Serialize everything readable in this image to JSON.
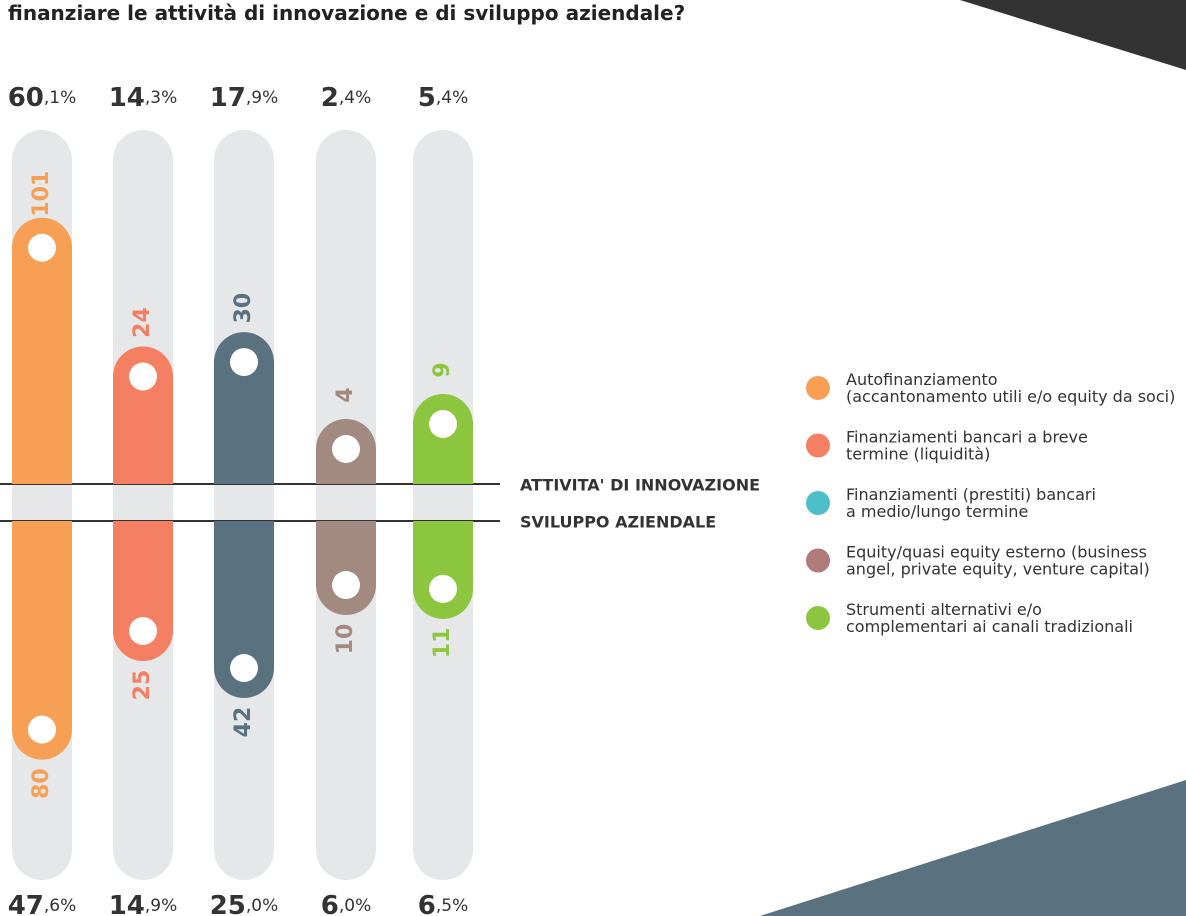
{
  "chart_data": {
    "type": "pill-bar",
    "title": "finanziare le attività di innovazione e di sviluppo aziendale?",
    "top_label": "ATTIVITA' DI INNOVAZIONE",
    "bottom_label": "SVILUPPO AZIENDALE",
    "series": [
      {
        "name": "Autofinanziamento\n(accantonamento utili e/o equity da soci)",
        "color": "#f7a055",
        "legend_color": "#f7a055",
        "values": [
          101,
          80
        ],
        "percent": [
          60.1,
          47.6
        ],
        "percent_labels": [
          "60,1%",
          "47,6%"
        ]
      },
      {
        "name": "Finanziamenti bancari a breve\ntermine (liquidità)",
        "color": "#f47f62",
        "legend_color": "#f47f62",
        "values": [
          24,
          25
        ],
        "percent": [
          14.3,
          14.9
        ],
        "percent_labels": [
          "14,3%",
          "14,9%"
        ]
      },
      {
        "name": "Finanziamenti (prestiti) bancari\na medio/lungo termine",
        "color": "#5a7180",
        "legend_color": "#4dbfc9",
        "values": [
          30,
          42
        ],
        "percent": [
          17.9,
          25.0
        ],
        "percent_labels": [
          "17,9%",
          "25,0%"
        ]
      },
      {
        "name": "Equity/quasi equity esterno (business\nangel, private equity, venture capital)",
        "color": "#a28a80",
        "legend_color": "#b07a78",
        "values": [
          4,
          10
        ],
        "percent": [
          2.4,
          6.0
        ],
        "percent_labels": [
          "2,4%",
          "6,0%"
        ]
      },
      {
        "name": "Strumenti alternativi e/o\ncomplementari ai canali tradizionali",
        "color": "#8cc63f",
        "legend_color": "#8cc63f",
        "values": [
          9,
          11
        ],
        "percent": [
          5.4,
          6.5
        ],
        "percent_labels": [
          "5,4%",
          "6,5%"
        ]
      }
    ]
  }
}
